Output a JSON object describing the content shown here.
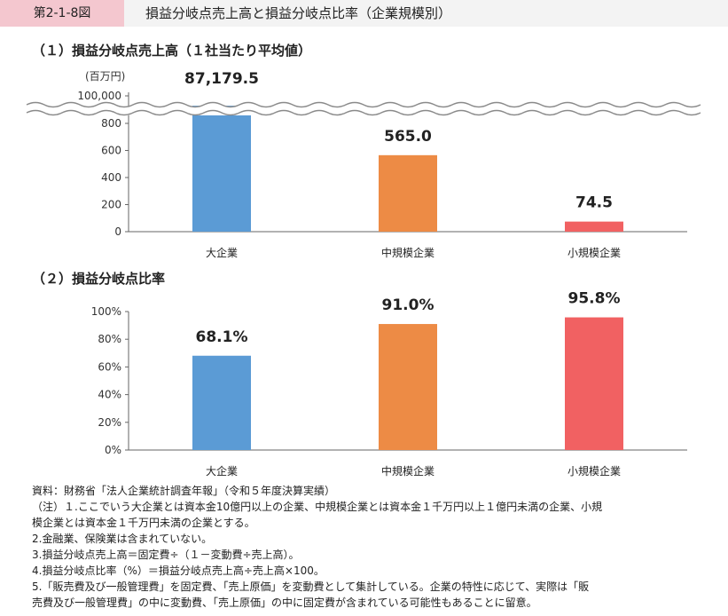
{
  "header": {
    "figure_id": "第2-1-8図",
    "title": "損益分岐点売上高と損益分岐点比率（企業規模別）"
  },
  "colors": {
    "large": "#5b9bd5",
    "medium": "#ed8b45",
    "small": "#f16162",
    "axis": "#666666",
    "header_tag": "#f4c7cf"
  },
  "chart_data": [
    {
      "type": "bar",
      "title": "（１）損益分岐点売上高（１社当たり平均値）",
      "unit_label": "(百万円)",
      "categories": [
        "大企業",
        "中規模企業",
        "小規模企業"
      ],
      "values": [
        87179.5,
        565.0,
        74.5
      ],
      "value_labels": [
        "87,179.5",
        "565.0",
        "74.5"
      ],
      "y_ticks": [
        "0",
        "200",
        "400",
        "600",
        "800",
        "100,000"
      ],
      "ylim": [
        0,
        100000
      ],
      "axis_break": true,
      "lower_segment": [
        0,
        800
      ],
      "grid": false
    },
    {
      "type": "bar",
      "title": "（２）損益分岐点比率",
      "categories": [
        "大企業",
        "中規模企業",
        "小規模企業"
      ],
      "values": [
        68.1,
        91.0,
        95.8
      ],
      "value_labels": [
        "68.1%",
        "91.0%",
        "95.8%"
      ],
      "y_ticks": [
        "0%",
        "20%",
        "40%",
        "60%",
        "80%",
        "100%"
      ],
      "ylim": [
        0,
        100
      ],
      "grid": false
    }
  ],
  "notes": [
    "資料：財務省「法人企業統計調査年報」（令和５年度決算実績）",
    "（注）１.ここでいう大企業とは資本金10億円以上の企業、中規模企業とは資本金１千万円以上１億円未満の企業、小規",
    "模企業とは資本金１千万円未満の企業とする。",
    "2.金融業、保険業は含まれていない。",
    "3.損益分岐点売上高＝固定費÷（１－変動費÷売上高）。",
    "4.損益分岐点比率（%）＝損益分岐点売上高÷売上高×100。",
    "5.「販売費及び一般管理費」を固定費、「売上原価」を変動費として集計している。企業の特性に応じて、実際は「販",
    "売費及び一般管理費」の中に変動費、「売上原価」の中に固定費が含まれている可能性もあることに留意。"
  ]
}
